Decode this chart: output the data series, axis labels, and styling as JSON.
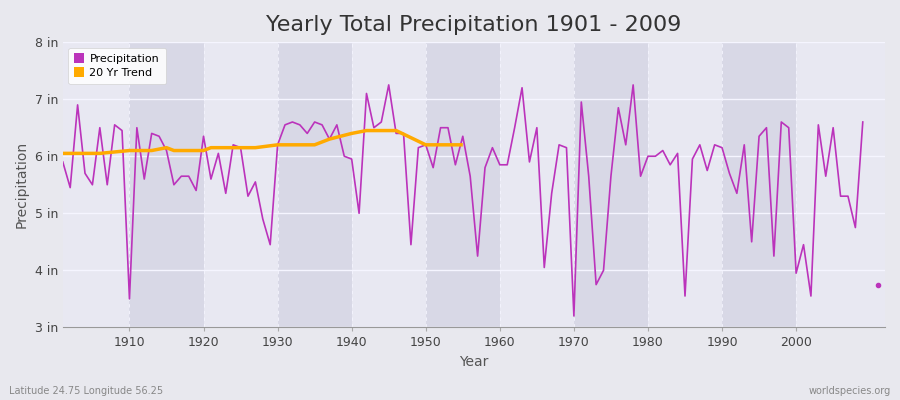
{
  "title": "Yearly Total Precipitation 1901 - 2009",
  "xlabel": "Year",
  "ylabel": "Precipitation",
  "lat_lon_label": "Latitude 24.75 Longitude 56.25",
  "watermark": "worldspecies.org",
  "years": [
    1901,
    1902,
    1903,
    1904,
    1905,
    1906,
    1907,
    1908,
    1909,
    1910,
    1911,
    1912,
    1913,
    1914,
    1915,
    1916,
    1917,
    1918,
    1919,
    1920,
    1921,
    1922,
    1923,
    1924,
    1925,
    1926,
    1927,
    1928,
    1929,
    1930,
    1931,
    1932,
    1933,
    1934,
    1935,
    1936,
    1937,
    1938,
    1939,
    1940,
    1941,
    1942,
    1943,
    1944,
    1945,
    1946,
    1947,
    1948,
    1949,
    1950,
    1951,
    1952,
    1953,
    1954,
    1955,
    1956,
    1957,
    1958,
    1959,
    1960,
    1961,
    1962,
    1963,
    1964,
    1965,
    1966,
    1967,
    1968,
    1969,
    1970,
    1971,
    1972,
    1973,
    1974,
    1975,
    1976,
    1977,
    1978,
    1979,
    1980,
    1981,
    1982,
    1983,
    1984,
    1985,
    1986,
    1987,
    1988,
    1989,
    1990,
    1991,
    1992,
    1993,
    1994,
    1995,
    1996,
    1997,
    1998,
    1999,
    2000,
    2001,
    2002,
    2003,
    2004,
    2005,
    2006,
    2007,
    2008,
    2009
  ],
  "precip_in": [
    5.9,
    5.45,
    6.9,
    5.7,
    5.5,
    6.5,
    5.5,
    6.55,
    6.45,
    3.5,
    6.5,
    5.6,
    6.4,
    6.35,
    6.1,
    5.5,
    5.65,
    5.65,
    5.4,
    6.35,
    5.6,
    6.05,
    5.35,
    6.2,
    6.15,
    5.3,
    5.55,
    4.9,
    4.45,
    6.2,
    6.55,
    6.6,
    6.55,
    6.4,
    6.6,
    6.55,
    6.3,
    6.55,
    6.0,
    5.95,
    5.0,
    7.1,
    6.5,
    6.6,
    7.25,
    6.4,
    6.4,
    4.45,
    6.15,
    6.2,
    5.8,
    6.5,
    6.5,
    5.85,
    6.35,
    5.65,
    4.25,
    5.8,
    6.15,
    5.85,
    5.85,
    6.5,
    7.2,
    5.9,
    6.5,
    4.05,
    5.35,
    6.2,
    6.15,
    3.2,
    6.95,
    5.65,
    3.75,
    4.0,
    5.65,
    6.85,
    6.2,
    7.25,
    5.65,
    6.0,
    6.0,
    6.1,
    5.85,
    6.05,
    3.55,
    5.95,
    6.2,
    5.75,
    6.2,
    6.15,
    5.7,
    5.35,
    6.2,
    4.5,
    6.35,
    6.5,
    4.25,
    6.6,
    6.5,
    3.95,
    4.45,
    3.55,
    6.55,
    5.65,
    6.5,
    5.3,
    5.3,
    4.75,
    6.6
  ],
  "trend_x": [
    1901,
    1906,
    1910,
    1913,
    1915,
    1916,
    1920,
    1921,
    1925,
    1927,
    1930,
    1935,
    1937,
    1940,
    1942,
    1944,
    1946,
    1950,
    1952,
    1955
  ],
  "trend_y": [
    6.05,
    6.05,
    6.1,
    6.1,
    6.15,
    6.1,
    6.1,
    6.15,
    6.15,
    6.15,
    6.2,
    6.2,
    6.3,
    6.4,
    6.45,
    6.45,
    6.45,
    6.2,
    6.2,
    6.2
  ],
  "precip_color": "#bb33bb",
  "trend_color": "#ffaa00",
  "bg_color": "#e8e8ee",
  "plot_bg_color_light": "#e8e8f2",
  "plot_bg_color_dark": "#d8d8e6",
  "grid_color": "#f5f5ff",
  "ylim_in": [
    3.0,
    8.0
  ],
  "yticks_in": [
    3,
    4,
    5,
    6,
    7,
    8
  ],
  "ytick_labels": [
    "3 in",
    "4 in",
    "5 in",
    "6 in",
    "7 in",
    "8 in"
  ],
  "xticks": [
    1910,
    1920,
    1930,
    1940,
    1950,
    1960,
    1970,
    1980,
    1990,
    2000
  ],
  "xmin": 1901,
  "xmax": 2012,
  "title_fontsize": 16,
  "axis_label_fontsize": 10,
  "tick_fontsize": 9,
  "legend_fontsize": 8,
  "dot_x": 2011,
  "dot_y": 3.75,
  "dot_color": "#bb33bb"
}
